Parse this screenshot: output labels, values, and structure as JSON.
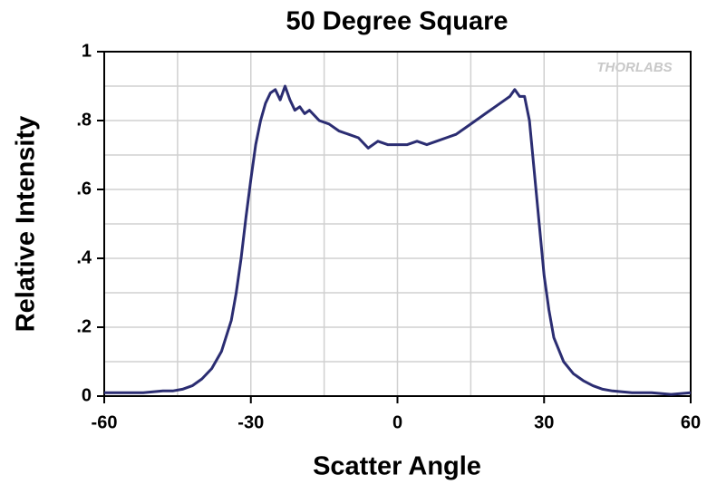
{
  "chart_data": {
    "type": "line",
    "title": "50 Degree Square",
    "x_label": "Scatter Angle",
    "y_label": "Relative Intensity",
    "watermark": "THORLABS",
    "xlim": [
      -60,
      60
    ],
    "ylim": [
      0,
      1
    ],
    "xticks": [
      -60,
      -30,
      0,
      30,
      60
    ],
    "xminorticks": [
      -45,
      -15,
      15,
      45
    ],
    "yticks": [
      0,
      {
        "value": 0.2,
        "label": ".2"
      },
      {
        "value": 0.4,
        "label": ".4"
      },
      {
        "value": 0.6,
        "label": ".6"
      },
      {
        "value": 0.8,
        "label": ".8"
      },
      1
    ],
    "yminorticks": [
      0.1,
      0.3,
      0.5,
      0.7,
      0.9
    ],
    "grid": true,
    "series": [
      {
        "color": "#2b2d72",
        "x": [
          -60,
          -56,
          -52,
          -48,
          -46,
          -44,
          -42,
          -40,
          -38,
          -36,
          -34,
          -33,
          -32,
          -31,
          -30,
          -29,
          -28,
          -27,
          -26,
          -25,
          -24,
          -23,
          -22,
          -21,
          -20,
          -19,
          -18,
          -16,
          -14,
          -12,
          -10,
          -8,
          -6,
          -4,
          -2,
          0,
          2,
          4,
          6,
          8,
          10,
          12,
          14,
          16,
          18,
          20,
          22,
          23,
          24,
          25,
          26,
          27,
          28,
          29,
          30,
          31,
          32,
          34,
          36,
          38,
          40,
          42,
          44,
          48,
          52,
          56,
          60
        ],
        "values": [
          0.01,
          0.01,
          0.01,
          0.015,
          0.015,
          0.02,
          0.03,
          0.05,
          0.08,
          0.13,
          0.22,
          0.3,
          0.4,
          0.52,
          0.63,
          0.73,
          0.8,
          0.85,
          0.88,
          0.89,
          0.86,
          0.9,
          0.86,
          0.83,
          0.84,
          0.82,
          0.83,
          0.8,
          0.79,
          0.77,
          0.76,
          0.75,
          0.72,
          0.74,
          0.73,
          0.73,
          0.73,
          0.74,
          0.73,
          0.74,
          0.75,
          0.76,
          0.78,
          0.8,
          0.82,
          0.84,
          0.86,
          0.87,
          0.89,
          0.87,
          0.87,
          0.8,
          0.65,
          0.5,
          0.35,
          0.25,
          0.17,
          0.1,
          0.065,
          0.045,
          0.03,
          0.02,
          0.015,
          0.01,
          0.01,
          0.005,
          0.01
        ]
      }
    ]
  }
}
